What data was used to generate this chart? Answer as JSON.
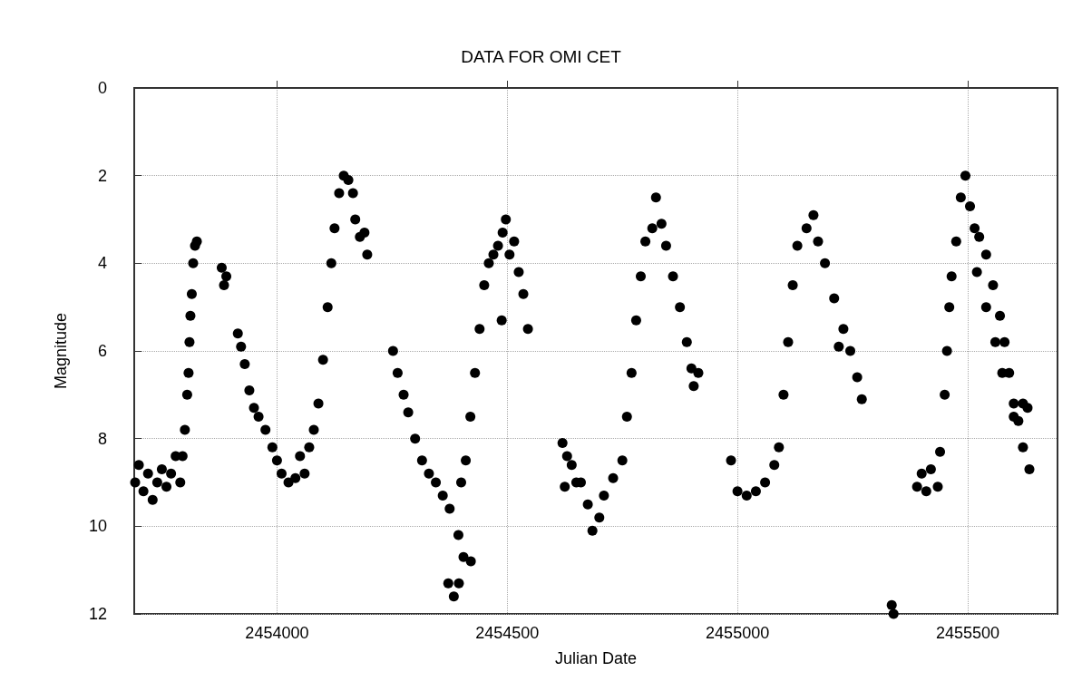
{
  "chart_data": {
    "type": "scatter",
    "title": "DATA FOR OMI CET",
    "xlabel": "Julian Date",
    "ylabel": "Magnitude",
    "xlim": [
      2453690,
      2455695
    ],
    "xticks": [
      2454000,
      2454500,
      2455000,
      2455500
    ],
    "ylim": [
      12,
      0
    ],
    "yticks": [
      0,
      2,
      4,
      6,
      8,
      10,
      12
    ],
    "grid": true,
    "marker": "circle",
    "series": [
      {
        "color": "#000000",
        "x": [
          2453692,
          2453700,
          2453710,
          2453720,
          2453730,
          2453740,
          2453750,
          2453760,
          2453770,
          2453780,
          2453790,
          2453795,
          2453800,
          2453805,
          2453808,
          2453810,
          2453812,
          2453815,
          2453818,
          2453822,
          2453826,
          2453880,
          2453885,
          2453890,
          2453915,
          2453922,
          2453930,
          2453940,
          2453950,
          2453960,
          2453975,
          2453990,
          2454000,
          2454010,
          2454025,
          2454040,
          2454050,
          2454060,
          2454070,
          2454080,
          2454090,
          2454100,
          2454110,
          2454118,
          2454125,
          2454135,
          2454145,
          2454155,
          2454165,
          2454170,
          2454180,
          2454190,
          2454196,
          2454252,
          2454262,
          2454275,
          2454285,
          2454300,
          2454315,
          2454330,
          2454345,
          2454360,
          2454375,
          2454394,
          2454372,
          2454384,
          2454395,
          2454405,
          2454421,
          2454400,
          2454410,
          2454420,
          2454430,
          2454440,
          2454450,
          2454460,
          2454470,
          2454480,
          2454488,
          2454490,
          2454497,
          2454505,
          2454515,
          2454525,
          2454535,
          2454545,
          2454620,
          2454630,
          2454640,
          2454625,
          2454650,
          2454660,
          2454675,
          2454685,
          2454700,
          2454710,
          2454730,
          2454750,
          2454760,
          2454770,
          2454780,
          2454790,
          2454800,
          2454815,
          2454823,
          2454835,
          2454845,
          2454860,
          2454875,
          2454890,
          2454900,
          2454905,
          2454915,
          2454986,
          2455000,
          2455020,
          2455040,
          2455060,
          2455080,
          2455090,
          2455100,
          2455110,
          2455120,
          2455130,
          2455150,
          2455165,
          2455175,
          2455190,
          2455210,
          2455220,
          2455230,
          2455245,
          2455260,
          2455270,
          2455335,
          2455339,
          2455390,
          2455400,
          2455410,
          2455420,
          2455435,
          2455440,
          2455450,
          2455455,
          2455460,
          2455465,
          2455475,
          2455485,
          2455495,
          2455505,
          2455515,
          2455520,
          2455525,
          2455540,
          2455540,
          2455555,
          2455560,
          2455570,
          2455575,
          2455580,
          2455590,
          2455600,
          2455600,
          2455610,
          2455620,
          2455620,
          2455630,
          2455634
        ],
        "values": [
          9.0,
          8.6,
          9.2,
          8.8,
          9.4,
          9.0,
          8.7,
          9.1,
          8.8,
          8.4,
          9.0,
          8.4,
          7.8,
          7.0,
          6.5,
          5.8,
          5.2,
          4.7,
          4.0,
          3.6,
          3.5,
          4.1,
          4.5,
          4.3,
          5.6,
          5.9,
          6.3,
          6.9,
          7.3,
          7.5,
          7.8,
          8.2,
          8.5,
          8.8,
          9.0,
          8.9,
          8.4,
          8.8,
          8.2,
          7.8,
          7.2,
          6.2,
          5.0,
          4.0,
          3.2,
          2.4,
          2.0,
          2.1,
          2.4,
          3.0,
          3.4,
          3.3,
          3.8,
          6.0,
          6.5,
          7.0,
          7.4,
          8.0,
          8.5,
          8.8,
          9.0,
          9.3,
          9.6,
          10.2,
          11.3,
          11.6,
          11.3,
          10.7,
          10.8,
          9.0,
          8.5,
          7.5,
          6.5,
          5.5,
          4.5,
          4.0,
          3.8,
          3.6,
          5.3,
          3.3,
          3.0,
          3.8,
          3.5,
          4.2,
          4.7,
          5.5,
          8.1,
          8.4,
          8.6,
          9.1,
          9.0,
          9.0,
          9.5,
          10.1,
          9.8,
          9.3,
          8.9,
          8.5,
          7.5,
          6.5,
          5.3,
          4.3,
          3.5,
          3.2,
          2.5,
          3.1,
          3.6,
          4.3,
          5.0,
          5.8,
          6.4,
          6.8,
          6.5,
          8.5,
          9.2,
          9.3,
          9.2,
          9.0,
          8.6,
          8.2,
          7.0,
          5.8,
          4.5,
          3.6,
          3.2,
          2.9,
          3.5,
          4.0,
          4.8,
          5.9,
          5.5,
          6.0,
          6.6,
          7.1,
          11.8,
          12.0,
          9.1,
          8.8,
          9.2,
          8.7,
          9.1,
          8.3,
          7.0,
          6.0,
          5.0,
          4.3,
          3.5,
          2.5,
          2.0,
          2.7,
          3.2,
          4.2,
          3.4,
          3.8,
          5.0,
          4.5,
          5.8,
          5.2,
          6.5,
          5.8,
          6.5,
          7.2,
          7.5,
          7.6,
          7.2,
          8.2,
          7.3,
          8.7
        ]
      }
    ]
  }
}
